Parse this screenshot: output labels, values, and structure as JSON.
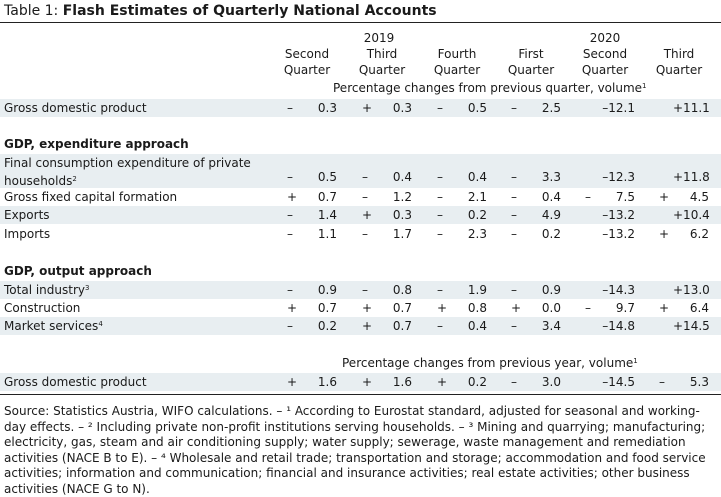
{
  "title": {
    "lead": "Table 1: ",
    "main": "Flash Estimates of Quarterly National Accounts"
  },
  "years": [
    "2019",
    "2020"
  ],
  "columns": [
    {
      "line1": "Second",
      "line2": "Quarter"
    },
    {
      "line1": "Third",
      "line2": "Quarter"
    },
    {
      "line1": "Fourth",
      "line2": "Quarter"
    },
    {
      "line1": "First",
      "line2": "Quarter"
    },
    {
      "line1": "Second",
      "line2": "Quarter"
    },
    {
      "line1": "Third",
      "line2": "Quarter"
    }
  ],
  "unit_quarter": "Percentage changes from previous quarter, volume",
  "unit_year": "Percentage changes from previous year, volume",
  "unit_mark": "1",
  "rows": {
    "gdp_q": {
      "label": "Gross domestic product",
      "values": [
        [
          "–",
          "0.3"
        ],
        [
          "+",
          "0.3"
        ],
        [
          "–",
          "0.5"
        ],
        [
          "–",
          "2.5"
        ],
        [
          "",
          "–12.1"
        ],
        [
          "",
          "+11.1"
        ]
      ]
    },
    "exp_heading": "GDP, expenditure approach",
    "fce": {
      "label1": "Final consumption expenditure of private",
      "label2": "households",
      "mark": "2",
      "values": [
        [
          "–",
          "0.5"
        ],
        [
          "–",
          "0.4"
        ],
        [
          "–",
          "0.4"
        ],
        [
          "–",
          "3.3"
        ],
        [
          "",
          "–12.3"
        ],
        [
          "",
          "+11.8"
        ]
      ]
    },
    "gfcf": {
      "label": "Gross fixed capital formation",
      "values": [
        [
          "+",
          "0.7"
        ],
        [
          "–",
          "1.2"
        ],
        [
          "–",
          "2.1"
        ],
        [
          "–",
          "0.4"
        ],
        [
          "–",
          "7.5"
        ],
        [
          "+",
          "4.5"
        ]
      ]
    },
    "exports": {
      "label": "Exports",
      "values": [
        [
          "–",
          "1.4"
        ],
        [
          "+",
          "0.3"
        ],
        [
          "–",
          "0.2"
        ],
        [
          "–",
          "4.9"
        ],
        [
          "",
          "–13.2"
        ],
        [
          "",
          "+10.4"
        ]
      ]
    },
    "imports": {
      "label": "Imports",
      "values": [
        [
          "–",
          "1.1"
        ],
        [
          "–",
          "1.7"
        ],
        [
          "–",
          "2.3"
        ],
        [
          "–",
          "0.2"
        ],
        [
          "",
          "–13.2"
        ],
        [
          "+",
          "6.2"
        ]
      ]
    },
    "out_heading": "GDP, output approach",
    "industry": {
      "label": "Total industry",
      "mark": "3",
      "values": [
        [
          "–",
          "0.9"
        ],
        [
          "–",
          "0.8"
        ],
        [
          "–",
          "1.9"
        ],
        [
          "–",
          "0.9"
        ],
        [
          "",
          "–14.3"
        ],
        [
          "",
          "+13.0"
        ]
      ]
    },
    "construction": {
      "label": "Construction",
      "values": [
        [
          "+",
          "0.7"
        ],
        [
          "+",
          "0.7"
        ],
        [
          "+",
          "0.8"
        ],
        [
          "+",
          "0.0"
        ],
        [
          "–",
          "9.7"
        ],
        [
          "+",
          "6.4"
        ]
      ]
    },
    "market": {
      "label": "Market services",
      "mark": "4",
      "values": [
        [
          "–",
          "0.2"
        ],
        [
          "+",
          "0.7"
        ],
        [
          "–",
          "0.4"
        ],
        [
          "–",
          "3.4"
        ],
        [
          "",
          "–14.8"
        ],
        [
          "",
          "+14.5"
        ]
      ]
    },
    "gdp_y": {
      "label": "Gross domestic product",
      "values": [
        [
          "+",
          "1.6"
        ],
        [
          "+",
          "1.6"
        ],
        [
          "+",
          "0.2"
        ],
        [
          "–",
          "3.0"
        ],
        [
          "",
          "–14.5"
        ],
        [
          "–",
          "5.3"
        ]
      ]
    }
  },
  "note": "Source: Statistics Austria, WIFO calculations. – ¹ According to Eurostat standard, adjusted for seasonal and working-day effects. – ² Including private non-profit institutions serving households. – ³ Mining and quarrying; manufacturing; electricity, gas, steam and air conditioning supply; water supply; sewerage, waste management and remediation activities (NACE B to E). – ⁴ Wholesale and retail trade; transportation and storage; accommodation and food service activities; information and communication; financial and insurance activities; real estate activities; other business activities (NACE G to N)."
}
